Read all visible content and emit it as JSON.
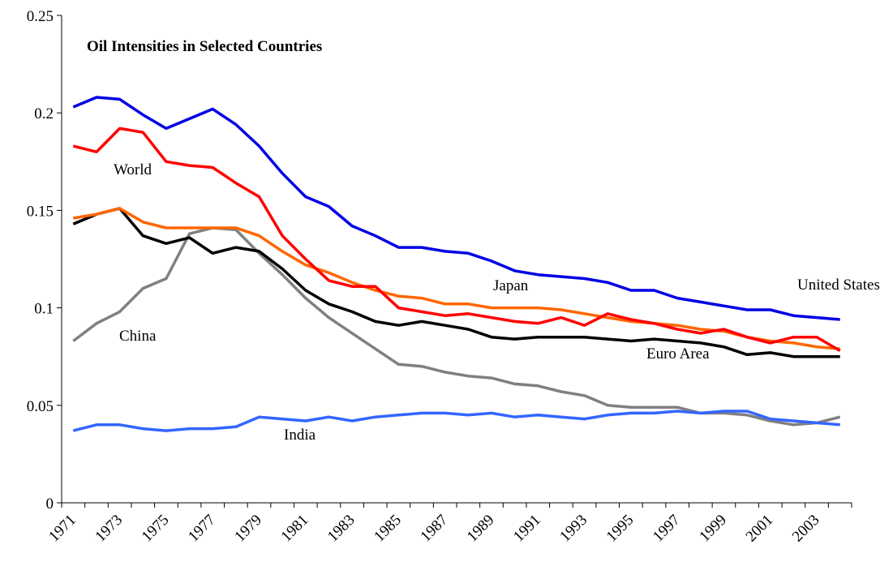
{
  "chart_data": {
    "type": "line",
    "title": "Oil Intensities in Selected Countries",
    "categories": [
      "1971",
      null,
      "1973",
      null,
      "1975",
      null,
      "1977",
      null,
      "1979",
      null,
      "1981",
      null,
      "1983",
      null,
      "1985",
      null,
      "1987",
      null,
      "1989",
      null,
      "1991",
      null,
      "1993",
      null,
      "1995",
      null,
      "1997",
      null,
      "1999",
      null,
      "2001",
      null,
      "2003",
      null
    ],
    "ylim": [
      0,
      0.25
    ],
    "yticks": [
      0,
      0.05,
      0.1,
      0.15,
      0.2,
      0.25
    ],
    "series": [
      {
        "name": "United States",
        "color": "#0000e6",
        "values": [
          0.203,
          0.208,
          0.207,
          0.199,
          0.192,
          0.197,
          0.202,
          0.194,
          0.183,
          0.169,
          0.157,
          0.152,
          0.142,
          0.137,
          0.131,
          0.131,
          0.129,
          0.128,
          0.124,
          0.119,
          0.117,
          0.116,
          0.115,
          0.113,
          0.109,
          0.109,
          0.105,
          0.103,
          0.101,
          0.099,
          0.099,
          0.096,
          0.095,
          0.094
        ]
      },
      {
        "name": "World",
        "color": "#ff0000",
        "values": [
          0.183,
          0.18,
          0.192,
          0.19,
          0.175,
          0.173,
          0.172,
          0.164,
          0.157,
          0.137,
          0.125,
          0.114,
          0.111,
          0.111,
          0.1,
          0.098,
          0.096,
          0.097,
          0.095,
          0.093,
          0.092,
          0.095,
          0.091,
          0.097,
          0.094,
          0.092,
          0.089,
          0.087,
          0.089,
          0.085,
          0.082,
          0.085,
          0.085,
          0.078
        ]
      },
      {
        "name": "Japan",
        "color": "#ff6600",
        "values": [
          0.146,
          0.148,
          0.151,
          0.144,
          0.141,
          0.141,
          0.141,
          0.141,
          0.137,
          0.129,
          0.122,
          0.118,
          0.113,
          0.109,
          0.106,
          0.105,
          0.102,
          0.102,
          0.1,
          0.1,
          0.1,
          0.099,
          0.097,
          0.095,
          0.093,
          0.092,
          0.091,
          0.089,
          0.088,
          0.085,
          0.083,
          0.082,
          0.08,
          0.079
        ]
      },
      {
        "name": "Euro Area",
        "color": "#000000",
        "values": [
          0.143,
          0.148,
          0.151,
          0.137,
          0.133,
          0.136,
          0.128,
          0.131,
          0.129,
          0.12,
          0.109,
          0.102,
          0.098,
          0.093,
          0.091,
          0.093,
          0.091,
          0.089,
          0.085,
          0.084,
          0.085,
          0.085,
          0.085,
          0.084,
          0.083,
          0.084,
          0.083,
          0.082,
          0.08,
          0.076,
          0.077,
          0.075,
          0.075,
          0.075
        ]
      },
      {
        "name": "China",
        "color": "#808080",
        "values": [
          0.083,
          0.092,
          0.098,
          0.11,
          0.115,
          0.138,
          0.141,
          0.14,
          0.128,
          0.117,
          0.105,
          0.095,
          0.087,
          0.079,
          0.071,
          0.07,
          0.067,
          0.065,
          0.064,
          0.061,
          0.06,
          0.057,
          0.055,
          0.05,
          0.049,
          0.049,
          0.049,
          0.046,
          0.046,
          0.045,
          0.042,
          0.04,
          0.041,
          0.044
        ]
      },
      {
        "name": "India",
        "color": "#3366ff",
        "values": [
          0.037,
          0.04,
          0.04,
          0.038,
          0.037,
          0.038,
          0.038,
          0.039,
          0.044,
          0.043,
          0.042,
          0.044,
          0.042,
          0.044,
          0.045,
          0.046,
          0.046,
          0.045,
          0.046,
          0.044,
          0.045,
          0.044,
          0.043,
          0.045,
          0.046,
          0.046,
          0.047,
          0.046,
          0.047,
          0.047,
          0.043,
          0.042,
          0.041,
          0.04
        ]
      }
    ]
  }
}
